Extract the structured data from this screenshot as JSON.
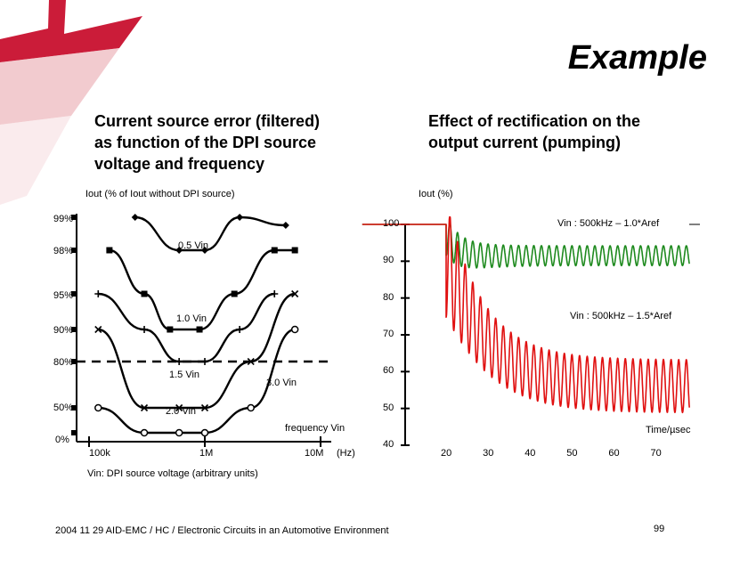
{
  "slide": {
    "title": "Example",
    "subtitle_left": [
      "Current source error (filtered)",
      "as function of the DPI source",
      "voltage and frequency"
    ],
    "subtitle_right": [
      "Effect of rectification on the",
      "output current (pumping)"
    ],
    "footer": "2004 11 29 AID-EMC / HC / Electronic Circuits in an Automotive Environment",
    "page_number": "99",
    "accent_color": "#c8102e"
  },
  "chart_data": [
    {
      "type": "line",
      "title": "Current source error (filtered) as function of the DPI source voltage and frequency",
      "ylabel": "Iout (% of Iout without DPI source)",
      "xlabel": "frequency Vin",
      "x_unit": "(Hz)",
      "x_scale": "log",
      "xlim": [
        100000,
        10000000
      ],
      "x_ticks": [
        {
          "value": 100000,
          "label": "100k"
        },
        {
          "value": 1000000,
          "label": "1M"
        },
        {
          "value": 10000000,
          "label": "10M"
        }
      ],
      "y_ticks": [
        "99%",
        "98%",
        "95%",
        "90%",
        "80%",
        "50%",
        "0%"
      ],
      "threshold": {
        "label": "80%",
        "style": "dashed"
      },
      "note": "Vin: DPI source voltage (arbitrary units)",
      "series": [
        {
          "name": "0.5 Vin",
          "marker": "diamond-square",
          "x": [
            250000,
            600000,
            1000000,
            2000000,
            5000000
          ],
          "y": [
            "99%",
            "98%",
            "98%",
            "99%",
            "99.5%"
          ]
        },
        {
          "name": "1.0 Vin",
          "marker": "square",
          "x": [
            150000,
            300000,
            500000,
            900000,
            1800000,
            4000000,
            6000000
          ],
          "y": [
            "98%",
            "95%",
            "90%",
            "90%",
            "95%",
            "98%",
            "98%"
          ]
        },
        {
          "name": "1.5 Vin",
          "marker": "plus-x",
          "x": [
            120000,
            300000,
            600000,
            1000000,
            2000000,
            4000000
          ],
          "y": [
            "95%",
            "90%",
            "80%",
            "80%",
            "90%",
            "95%"
          ]
        },
        {
          "name": "3.0 Vin",
          "marker": "x",
          "x": [
            120000,
            300000,
            600000,
            1000000,
            2500000,
            6000000
          ],
          "y": [
            "90%",
            "50%",
            "50%",
            "50%",
            "80%",
            "95%"
          ]
        },
        {
          "name": "2.0 Vin",
          "marker": "circle-diamond",
          "x": [
            120000,
            300000,
            600000,
            1000000,
            2500000,
            6000000
          ],
          "y": [
            "50%",
            "0%",
            "0%",
            "0%",
            "50%",
            "90%"
          ]
        }
      ]
    },
    {
      "type": "line",
      "title": "Effect of rectification on the output current (pumping)",
      "ylabel": "Iout (%)",
      "xlabel": "Time/µsec",
      "xlim": [
        0,
        80
      ],
      "ylim": [
        40,
        100
      ],
      "x_ticks": [
        20,
        30,
        40,
        50,
        60,
        70
      ],
      "y_ticks": [
        100,
        90,
        80,
        70,
        60,
        50,
        40
      ],
      "series": [
        {
          "name": "Vin : 500kHz – 1.0*Aref",
          "color": "#1e8a1e",
          "start_time": 20,
          "initial_value": 100,
          "settled_mean": 93,
          "settled_amplitude": 3,
          "cycles_per_10us": 5.5
        },
        {
          "name": "Vin : 500kHz – 1.5*Aref",
          "color": "#e01010",
          "start_time": 20,
          "initial_value": 100,
          "settled_mean": 60,
          "settled_amplitude": 8,
          "cycles_per_10us": 5.5
        }
      ]
    }
  ]
}
